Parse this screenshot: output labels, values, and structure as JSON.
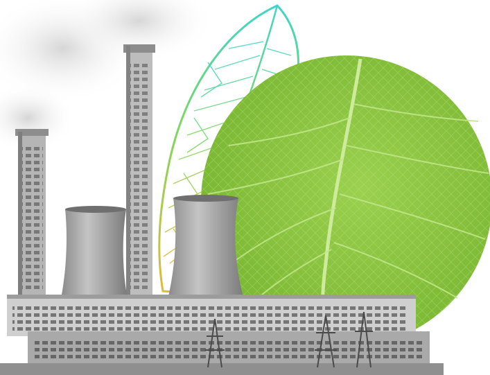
{
  "scene": {
    "subject": "collage",
    "elements": [
      "smoke",
      "skeleton-leaf",
      "green-leaf-disc",
      "chimney",
      "cooling-tower",
      "factory-building",
      "power-pylon"
    ],
    "colors": {
      "background": "#ffffff",
      "leaf_green": "#8cc63f",
      "leaf_green_dark": "#6aa52a",
      "leaf_vein": "#c9e89a",
      "skeleton_teal": "#3fd6c8",
      "skeleton_green": "#7fd85a",
      "skeleton_yellow": "#e2b93b",
      "concrete_light": "#c9c9c9",
      "concrete_mid": "#9a9a9a",
      "concrete_dark": "#5c5c5c",
      "smoke": "#d8d8d8"
    }
  }
}
